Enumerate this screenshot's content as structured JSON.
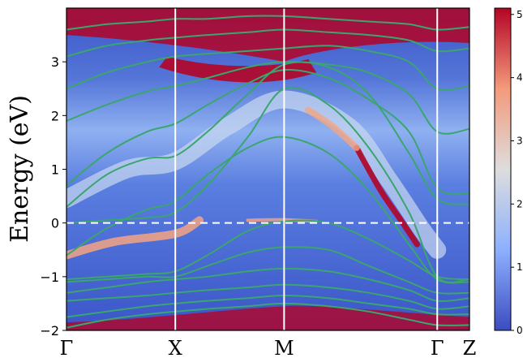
{
  "chart_data": {
    "type": "heatmap",
    "title": "",
    "xlabel": "",
    "ylabel": "Energy (eV)",
    "ylim": [
      -2,
      4
    ],
    "yticks": [
      -2,
      -1,
      0,
      1,
      2,
      3
    ],
    "yticklabels": [
      "−2",
      "−1",
      "0",
      "1",
      "2",
      "3"
    ],
    "kpath": [
      {
        "label": "Γ",
        "position": 0.0
      },
      {
        "label": "X",
        "position": 0.27
      },
      {
        "label": "M",
        "position": 0.54
      },
      {
        "label": "Γ",
        "position": 0.92
      },
      {
        "label": "Z",
        "position": 1.0
      }
    ],
    "fermi_level": 0,
    "colorbar": {
      "min": 0,
      "max": 5.1,
      "ticks": [
        0,
        1,
        2,
        3,
        4,
        5
      ],
      "ticklabels": [
        "0",
        "1",
        "2",
        "3",
        "4",
        "5"
      ],
      "colormap": "coolwarm"
    },
    "colors": {
      "background_low": "#3b55c8",
      "mid": "#dcdcdc",
      "high": "#b40426",
      "band_line": "#3aa66e",
      "vertical_line": "#ffffff",
      "fermi_line": "#ffffff"
    },
    "bands": [
      {
        "k": [
          0,
          0.1,
          0.2,
          0.27,
          0.35,
          0.45,
          0.54,
          0.65,
          0.75,
          0.85,
          0.92,
          1.0
        ],
        "E": [
          -0.6,
          -0.1,
          0.25,
          0.4,
          0.9,
          1.4,
          1.6,
          1.3,
          0.6,
          -0.4,
          -1.05,
          -1.1
        ]
      },
      {
        "k": [
          0,
          0.1,
          0.2,
          0.27,
          0.35,
          0.45,
          0.54,
          0.65,
          0.75,
          0.85,
          0.92,
          1.0
        ],
        "E": [
          0.0,
          0.05,
          0.1,
          0.2,
          0.7,
          1.6,
          2.5,
          2.2,
          1.4,
          0.2,
          -1.0,
          -1.05
        ]
      },
      {
        "k": [
          0,
          0.1,
          0.2,
          0.27,
          0.35,
          0.45,
          0.54,
          0.65,
          0.75,
          0.85,
          0.92,
          1.0
        ],
        "E": [
          0.3,
          0.9,
          1.2,
          1.25,
          1.7,
          2.4,
          2.95,
          2.9,
          2.4,
          1.3,
          0.45,
          0.35
        ]
      },
      {
        "k": [
          0,
          0.1,
          0.2,
          0.27,
          0.35,
          0.45,
          0.54,
          0.65,
          0.75,
          0.85,
          0.92,
          1.0
        ],
        "E": [
          0.7,
          1.3,
          1.7,
          1.85,
          2.2,
          2.6,
          2.85,
          2.7,
          2.3,
          1.7,
          0.65,
          0.55
        ]
      },
      {
        "k": [
          0,
          0.1,
          0.2,
          0.27,
          0.35,
          0.45,
          0.54,
          0.65,
          0.75,
          0.85,
          0.92,
          1.0
        ],
        "E": [
          1.9,
          2.2,
          2.45,
          2.55,
          2.7,
          2.9,
          3.0,
          2.95,
          2.8,
          2.4,
          1.7,
          1.75
        ]
      },
      {
        "k": [
          0,
          0.1,
          0.2,
          0.27,
          0.35,
          0.45,
          0.54,
          0.65,
          0.75,
          0.85,
          0.92,
          1.0
        ],
        "E": [
          2.5,
          2.8,
          3.0,
          3.1,
          3.15,
          3.2,
          3.25,
          3.3,
          3.2,
          3.0,
          2.5,
          2.55
        ]
      },
      {
        "k": [
          0,
          0.1,
          0.2,
          0.27,
          0.35,
          0.45,
          0.54,
          0.65,
          0.75,
          0.85,
          0.92,
          1.0
        ],
        "E": [
          3.1,
          3.3,
          3.4,
          3.45,
          3.5,
          3.55,
          3.6,
          3.55,
          3.5,
          3.4,
          3.2,
          3.25
        ]
      },
      {
        "k": [
          0,
          0.1,
          0.2,
          0.27,
          0.35,
          0.45,
          0.54,
          0.65,
          0.75,
          0.85,
          0.92,
          1.0
        ],
        "E": [
          3.6,
          3.7,
          3.75,
          3.8,
          3.8,
          3.85,
          3.85,
          3.8,
          3.75,
          3.7,
          3.6,
          3.65
        ]
      },
      {
        "k": [
          0,
          0.1,
          0.2,
          0.27,
          0.35,
          0.45,
          0.54,
          0.65,
          0.75,
          0.85,
          0.92,
          1.0
        ],
        "E": [
          -1.05,
          -1.0,
          -0.95,
          -0.9,
          -0.6,
          -0.15,
          0.03,
          0.0,
          -0.3,
          -0.7,
          -1.0,
          -1.05
        ]
      },
      {
        "k": [
          0,
          0.1,
          0.2,
          0.27,
          0.35,
          0.45,
          0.54,
          0.65,
          0.75,
          0.85,
          0.92,
          1.0
        ],
        "E": [
          -1.1,
          -1.05,
          -1.0,
          -1.0,
          -0.8,
          -0.55,
          -0.45,
          -0.5,
          -0.8,
          -1.1,
          -1.3,
          -1.3
        ]
      },
      {
        "k": [
          0,
          0.1,
          0.2,
          0.27,
          0.35,
          0.45,
          0.54,
          0.65,
          0.75,
          0.85,
          0.92,
          1.0
        ],
        "E": [
          -1.3,
          -1.2,
          -1.1,
          -1.05,
          -1.0,
          -0.9,
          -0.85,
          -0.9,
          -1.05,
          -1.25,
          -1.45,
          -1.4
        ]
      },
      {
        "k": [
          0,
          0.1,
          0.2,
          0.27,
          0.35,
          0.45,
          0.54,
          0.65,
          0.75,
          0.85,
          0.92,
          1.0
        ],
        "E": [
          -1.45,
          -1.4,
          -1.35,
          -1.3,
          -1.25,
          -1.2,
          -1.15,
          -1.2,
          -1.3,
          -1.45,
          -1.6,
          -1.55
        ]
      },
      {
        "k": [
          0,
          0.1,
          0.2,
          0.27,
          0.35,
          0.45,
          0.54,
          0.65,
          0.75,
          0.85,
          0.92,
          1.0
        ],
        "E": [
          -1.75,
          -1.65,
          -1.55,
          -1.5,
          -1.45,
          -1.4,
          -1.35,
          -1.4,
          -1.5,
          -1.6,
          -1.7,
          -1.7
        ]
      },
      {
        "k": [
          0,
          0.1,
          0.2,
          0.27,
          0.35,
          0.45,
          0.54,
          0.65,
          0.75,
          0.85,
          0.92,
          1.0
        ],
        "E": [
          -1.95,
          -1.8,
          -1.7,
          -1.65,
          -1.6,
          -1.55,
          -1.5,
          -1.55,
          -1.65,
          -1.8,
          -1.9,
          -1.9
        ]
      }
    ]
  }
}
